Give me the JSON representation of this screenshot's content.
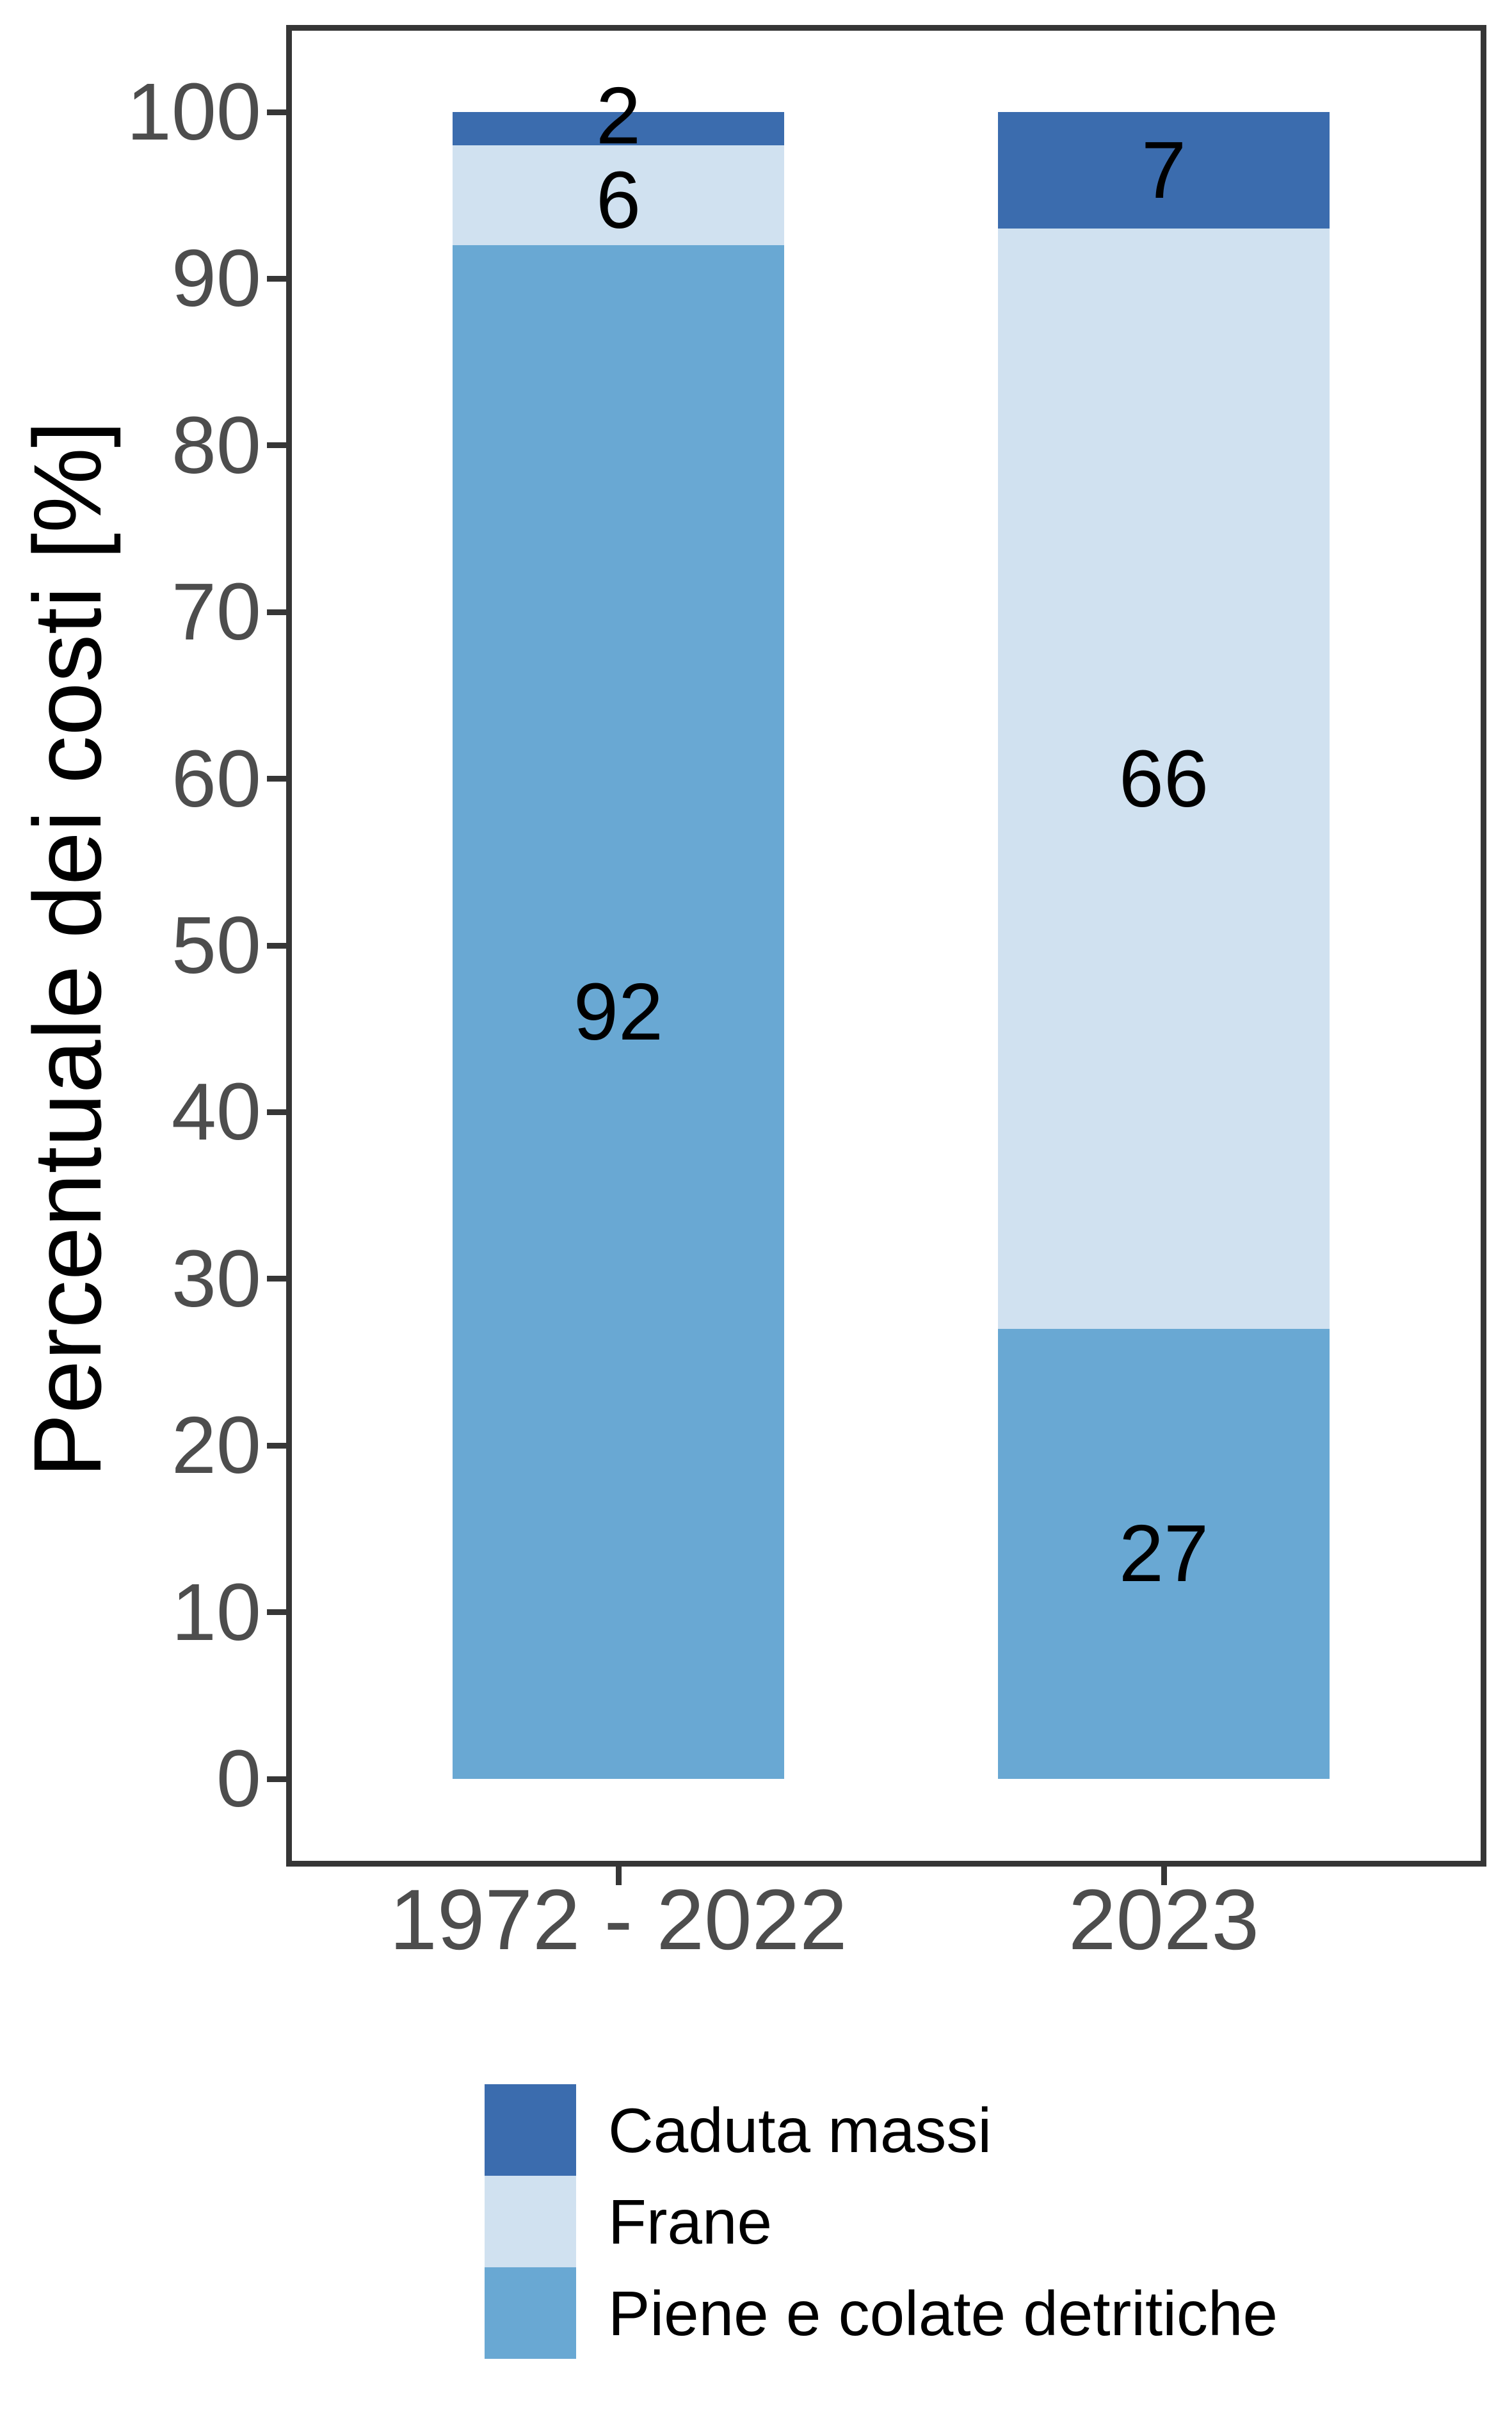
{
  "y_axis": {
    "title": "Percentuale dei costi [%]",
    "tick_labels": [
      "0",
      "10",
      "20",
      "30",
      "40",
      "50",
      "60",
      "70",
      "80",
      "90",
      "100"
    ]
  },
  "x_axis": {
    "categories": [
      "1972 - 2022",
      "2023"
    ]
  },
  "legend": {
    "items": [
      {
        "label": "Caduta massi",
        "color": "#3b6cae"
      },
      {
        "label": "Frane",
        "color": "#d0e1f0"
      },
      {
        "label": "Piene e colate detritiche",
        "color": "#69a8d3"
      }
    ]
  },
  "colors": {
    "axis_text": "#4d4d4d",
    "panel_border": "#363636",
    "value_label": "#000000"
  },
  "chart_data": {
    "type": "bar",
    "stacked": true,
    "categories": [
      "1972 - 2022",
      "2023"
    ],
    "series": [
      {
        "name": "Caduta massi",
        "color": "#3b6cae",
        "values": [
          2,
          7
        ]
      },
      {
        "name": "Frane",
        "color": "#d0e1f0",
        "values": [
          6,
          66
        ]
      },
      {
        "name": "Piene e colate detritiche",
        "color": "#69a8d3",
        "values": [
          92,
          27
        ]
      }
    ],
    "value_labels_shown": true,
    "title": "",
    "xlabel": "",
    "ylabel": "Percentuale dei costi [%]",
    "ylim": [
      0,
      100
    ],
    "grid": false,
    "legend_position": "bottom-left"
  }
}
